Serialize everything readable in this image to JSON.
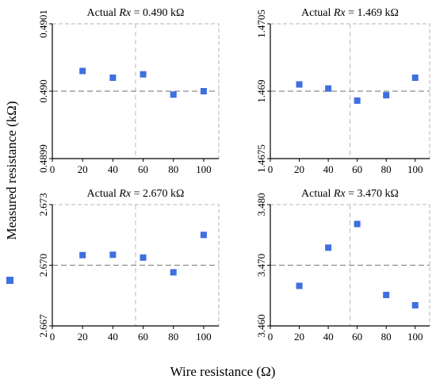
{
  "axis_labels": {
    "ylabel": "Measured resistance (kΩ)",
    "xlabel": "Wire resistance (Ω)"
  },
  "marker_color": "#3F6FE0",
  "chart_data": [
    {
      "type": "scatter",
      "title_prefix": "Actual ",
      "title_var": "Rx",
      "title_value": " = 0.490 kΩ",
      "x": [
        20,
        40,
        60,
        80,
        100
      ],
      "y": [
        0.49003,
        0.49002,
        0.490025,
        0.489995,
        0.49
      ],
      "xlim": [
        0,
        110
      ],
      "ylim": [
        0.4899,
        0.4901
      ],
      "x_ticks": [
        0,
        20,
        40,
        60,
        80,
        100
      ],
      "y_ticks": [
        0.4899,
        0.49,
        0.4901
      ],
      "y_tick_labels": [
        "0.4899",
        "0.490",
        "0.4901"
      ],
      "reference_y": 0.49,
      "reference_x": 55,
      "grid": false
    },
    {
      "type": "scatter",
      "title_prefix": "Actual ",
      "title_var": "Rx",
      "title_value": " = 1.469 kΩ",
      "x": [
        20,
        40,
        60,
        80,
        100
      ],
      "y": [
        1.46915,
        1.46906,
        1.46879,
        1.46891,
        1.4693
      ],
      "xlim": [
        0,
        110
      ],
      "ylim": [
        1.4675,
        1.4705
      ],
      "x_ticks": [
        0,
        20,
        40,
        60,
        80,
        100
      ],
      "y_ticks": [
        1.4675,
        1.469,
        1.4705
      ],
      "y_tick_labels": [
        "1.4675",
        "1.469",
        "1.4705"
      ],
      "reference_y": 1.469,
      "reference_x": 55,
      "grid": false
    },
    {
      "type": "scatter",
      "title_prefix": "Actual ",
      "title_var": "Rx",
      "title_value": " = 2.670 kΩ",
      "x": [
        20,
        40,
        60,
        80,
        100
      ],
      "y": [
        2.6705,
        2.67052,
        2.67038,
        2.66965,
        2.6715
      ],
      "xlim": [
        0,
        110
      ],
      "ylim": [
        2.667,
        2.673
      ],
      "x_ticks": [
        0,
        20,
        40,
        60,
        80,
        100
      ],
      "y_ticks": [
        2.667,
        2.67,
        2.673
      ],
      "y_tick_labels": [
        "2.667",
        "2.670",
        "2.673"
      ],
      "reference_y": 2.67,
      "reference_x": 55,
      "grid": false
    },
    {
      "type": "scatter",
      "title_prefix": "Actual ",
      "title_var": "Rx",
      "title_value": " = 3.470 kΩ",
      "x": [
        20,
        40,
        60,
        80,
        100
      ],
      "y": [
        3.4666,
        3.4729,
        3.4768,
        3.4651,
        3.4634
      ],
      "xlim": [
        0,
        110
      ],
      "ylim": [
        3.46,
        3.48
      ],
      "x_ticks": [
        0,
        20,
        40,
        60,
        80,
        100
      ],
      "y_ticks": [
        3.46,
        3.47,
        3.48
      ],
      "y_tick_labels": [
        "3.460",
        "3.470",
        "3.480"
      ],
      "reference_y": 3.47,
      "reference_x": 55,
      "grid": false
    }
  ]
}
